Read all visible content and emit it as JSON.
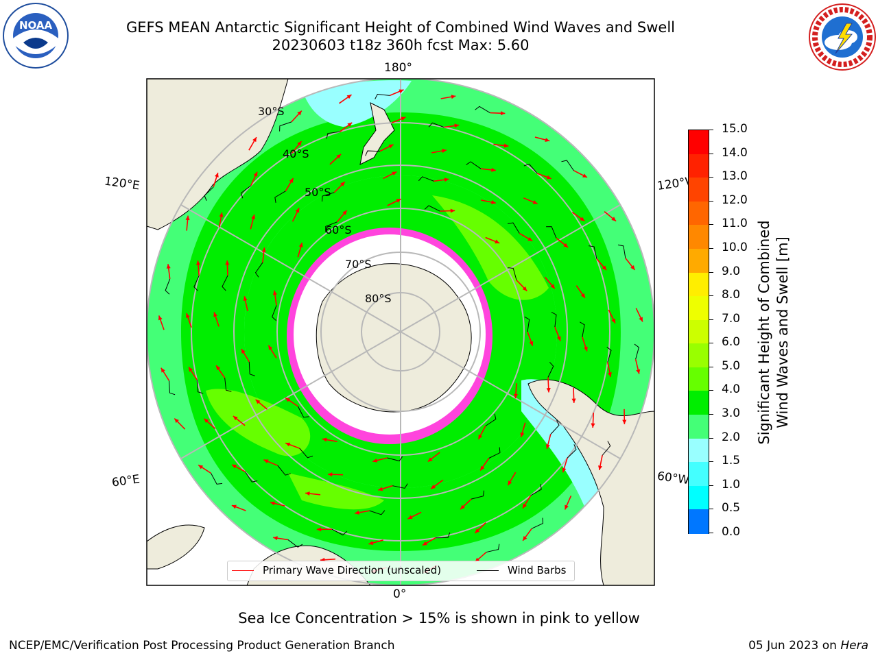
{
  "header": {
    "title": "GEFS MEAN Antarctic Significant Height of Combined Wind Waves and Swell",
    "subtitle": "20230603 t18z 360h fcst   Max: 5.60"
  },
  "logos": {
    "noaa": {
      "icon": "noaa-logo",
      "text": "NOAA",
      "ring_text": "NATIONAL OCEANIC AND ATMOSPHERIC ADMINISTRATION · U.S. DEPARTMENT OF COMMERCE"
    },
    "nws": {
      "icon": "nws-logo",
      "ring_text": "NATIONAL WEATHER SERVICE"
    }
  },
  "map": {
    "projection": "south-polar-stereographic",
    "longitude_labels": {
      "top": "180°",
      "bottom": "0°",
      "upper_left": "120°E",
      "upper_right": "120°W",
      "lower_left": "60°E",
      "lower_right": "60°W"
    },
    "latitude_labels": [
      "30°S",
      "40°S",
      "50°S",
      "60°S",
      "70°S",
      "80°S"
    ],
    "colors": {
      "land": "#eeecdc",
      "ice_edge": "#ff44dd",
      "ice_interior": "#ffffff",
      "gridline": "#b8b8b8"
    }
  },
  "colorbar": {
    "label": "Significant Height of Combined Wind Waves and Swell [m]",
    "label_lines": [
      "Significant Height of Combined",
      "Wind Waves and Swell [m]"
    ],
    "ticks": [
      "15.0",
      "14.0",
      "13.0",
      "12.0",
      "11.0",
      "10.0",
      "9.0",
      "8.0",
      "7.0",
      "6.0",
      "5.0",
      "4.0",
      "3.0",
      "2.0",
      "1.5",
      "1.0",
      "0.5",
      "0.0"
    ],
    "colors_top_to_bottom": [
      "#ff0000",
      "#ff2200",
      "#ff4400",
      "#ff6600",
      "#ff8800",
      "#ffaa00",
      "#ffee00",
      "#eeff00",
      "#ccff00",
      "#99ff00",
      "#66ff00",
      "#00ee00",
      "#44ff77",
      "#99ffff",
      "#44ffff",
      "#00ffff",
      "#0077ff",
      "#0000ff"
    ]
  },
  "legend": {
    "items": [
      {
        "label": "Primary Wave Direction (unscaled)",
        "color": "#ff0000"
      },
      {
        "label": "Wind Barbs",
        "color": "#000000"
      }
    ]
  },
  "caption": "Sea Ice Concentration > 15% is shown in pink to yellow",
  "footer": {
    "left": "NCEP/EMC/Verification Post Processing Product Generation Branch",
    "right_prefix": "05 Jun 2023 on ",
    "right_host": "Hera"
  }
}
